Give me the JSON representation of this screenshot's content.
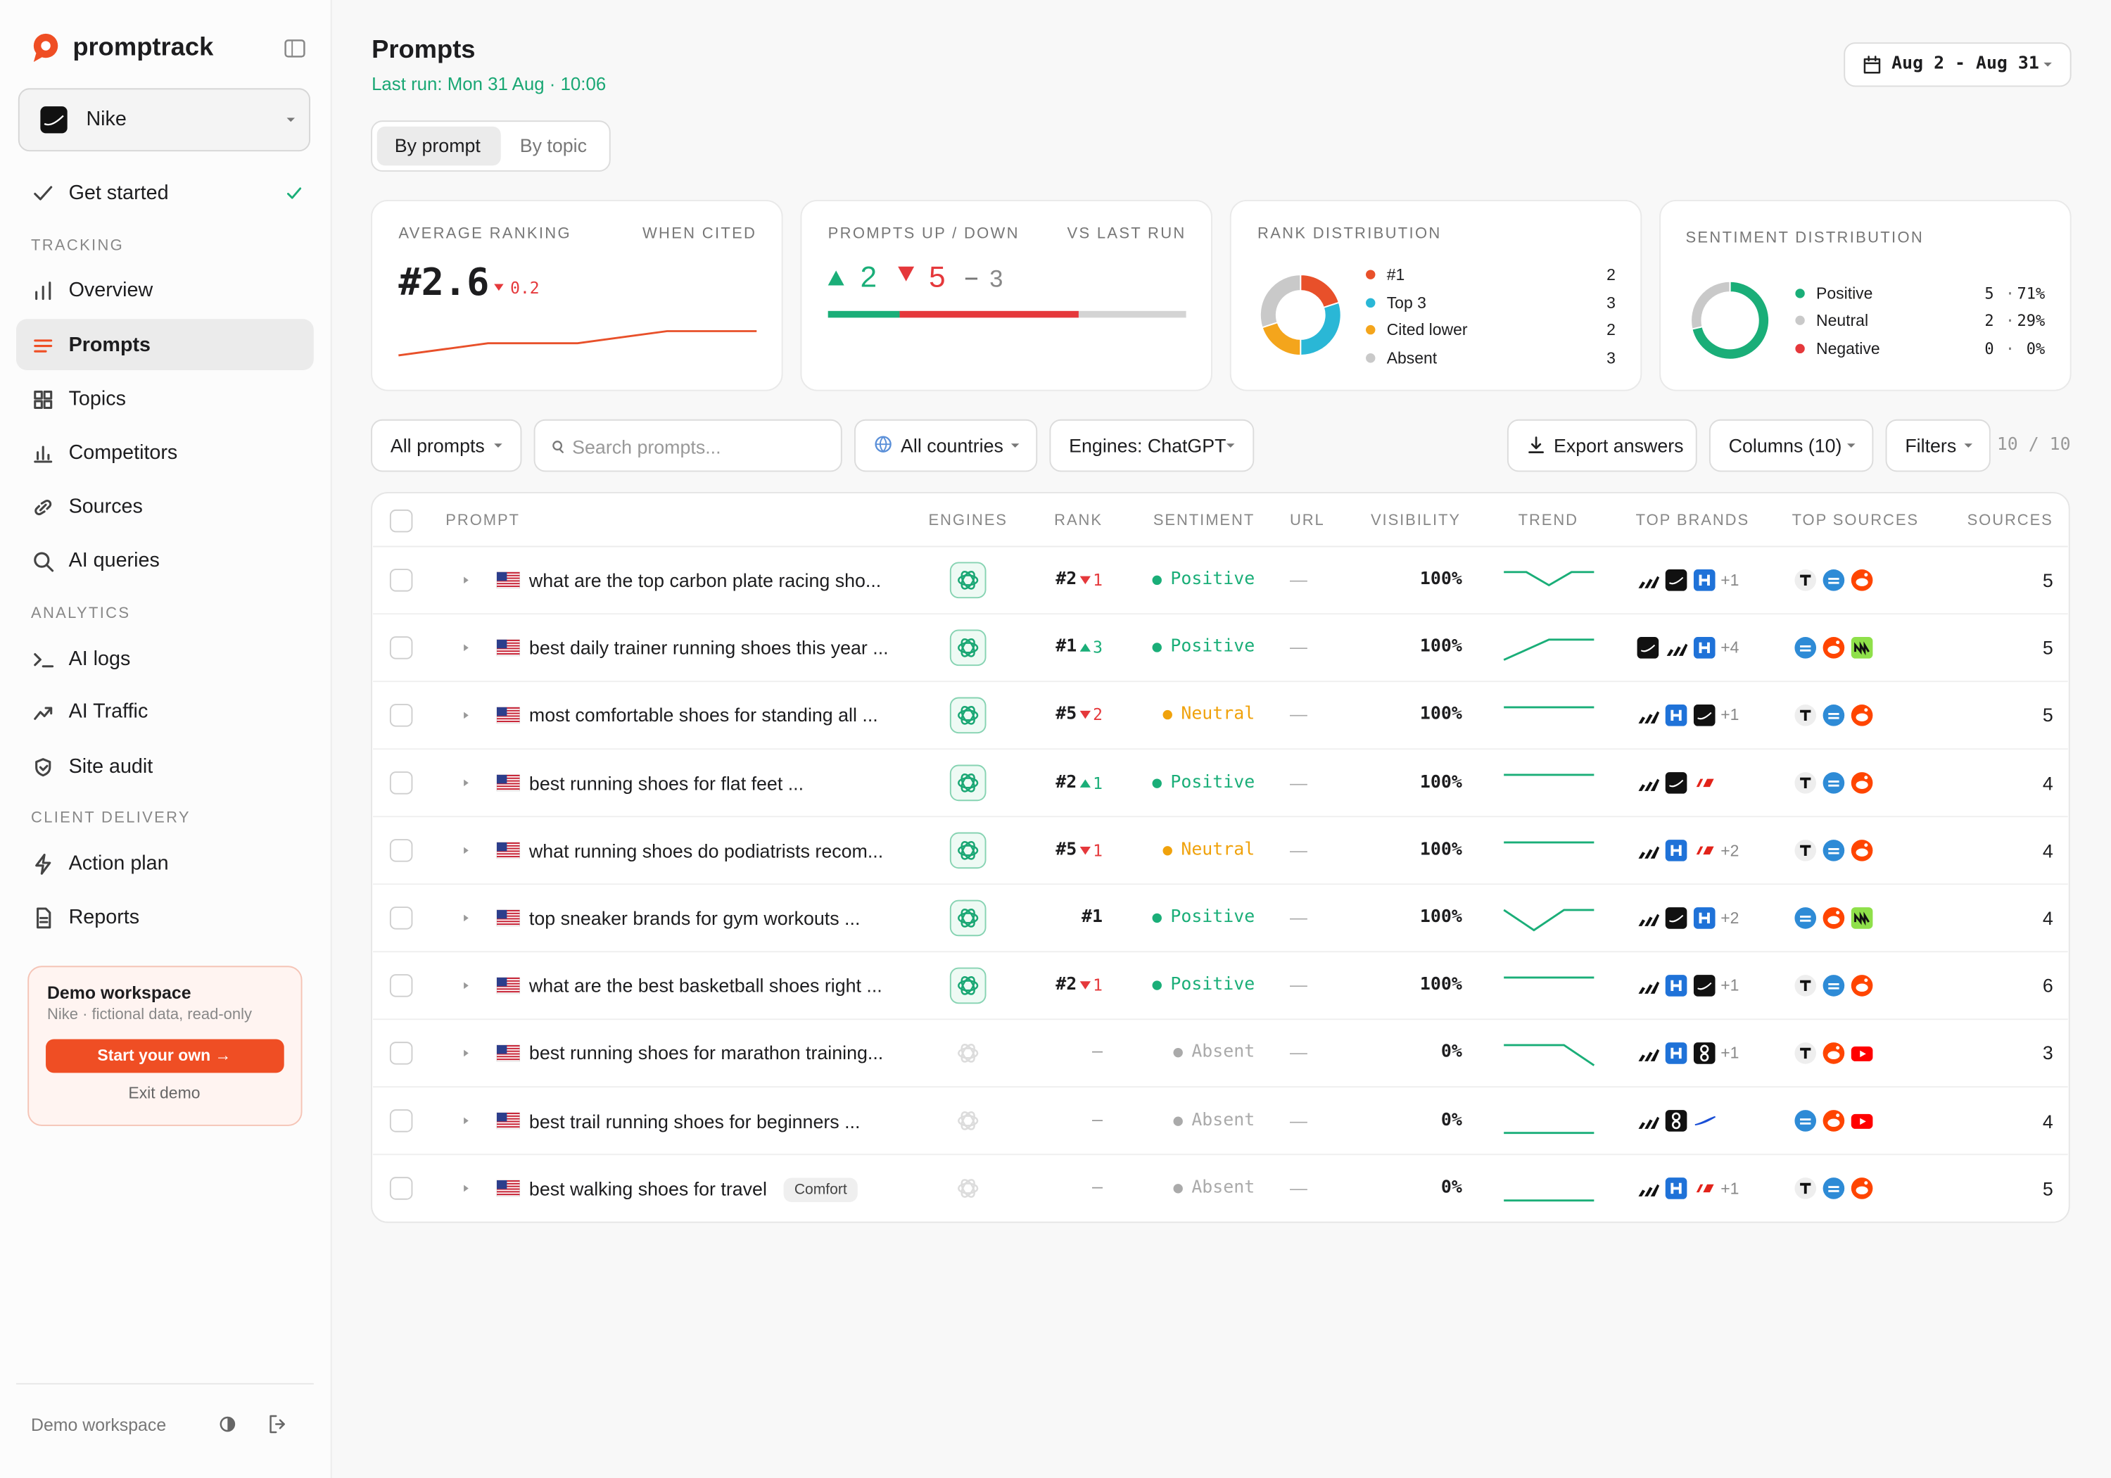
{
  "sidebar": {
    "logo": "promptrack",
    "workspace": "Nike",
    "get_started": "Get started",
    "sections": [
      {
        "title": "TRACKING",
        "items": [
          "Overview",
          "Prompts",
          "Topics",
          "Competitors",
          "Sources",
          "AI queries"
        ]
      },
      {
        "title": "ANALYTICS",
        "items": [
          "AI logs",
          "AI Traffic",
          "Site audit"
        ]
      },
      {
        "title": "CLIENT DELIVERY",
        "items": [
          "Action plan",
          "Reports"
        ]
      }
    ],
    "demo": {
      "title": "Demo workspace",
      "subtitle": "Nike · fictional data, read-only",
      "button": "Start your own →",
      "exit": "Exit demo"
    },
    "footer": "Demo workspace"
  },
  "header": {
    "title": "Prompts",
    "last_run": "Last run: Mon 31 Aug · 10:06",
    "date_range": "Aug 2 - Aug 31",
    "tabs": [
      "By prompt",
      "By topic"
    ]
  },
  "cards": {
    "avg_ranking": {
      "label": "AVERAGE RANKING",
      "note": "WHEN CITED",
      "value": "#2.6",
      "change": "0.2",
      "change_trend": "down",
      "history": [
        3.2,
        2.9,
        2.9,
        2.6,
        2.6
      ],
      "history_ylim": [
        3.4,
        2.4
      ],
      "color": "#e8502a"
    },
    "prompts_updown": {
      "label": "PROMPTS UP / DOWN",
      "note": "VS LAST RUN",
      "up": 2,
      "down": 5,
      "same": 3,
      "colors": [
        "#1aae78",
        "#e5383b",
        "#d4d4d4"
      ]
    },
    "rank_distribution": {
      "label": "RANK DISTRIBUTION",
      "items": [
        {
          "name": "#1",
          "value": 2,
          "color": "#e8502a"
        },
        {
          "name": "Top 3",
          "value": 3,
          "color": "#2ab7d6"
        },
        {
          "name": "Cited lower",
          "value": 2,
          "color": "#f4a51c"
        },
        {
          "name": "Absent",
          "value": 3,
          "color": "#c9c9c9"
        }
      ]
    },
    "sentiment": {
      "label": "SENTIMENT DISTRIBUTION",
      "separator": "·",
      "items": [
        {
          "name": "Positive",
          "count": 5,
          "share": "71%",
          "color": "#1aae78"
        },
        {
          "name": "Neutral",
          "count": 2,
          "share": "29%",
          "color": "#c9c9c9"
        },
        {
          "name": "Negative",
          "count": 0,
          "share": "0%",
          "color": "#e5383b"
        }
      ]
    }
  },
  "toolbar": {
    "filter": "All prompts",
    "search_placeholder": "Search prompts...",
    "countries": "All countries",
    "engines": "Engines: ChatGPT",
    "export": "Export answers",
    "columns": "Columns (10)",
    "filters": "Filters",
    "count": "10 / 10"
  },
  "table": {
    "columns": [
      "PROMPT",
      "ENGINES",
      "RANK",
      "SENTIMENT",
      "URL",
      "VISIBILITY",
      "TREND",
      "TOP BRANDS",
      "TOP SOURCES",
      "SOURCES"
    ],
    "rank_colors": {
      "up": "#1aae78",
      "down": "#e5383b"
    },
    "trend_color": "#1aae78",
    "trend_ylim": [
      0,
      100
    ],
    "rows": [
      {
        "prompt": "what are the top carbon plate racing sho...",
        "engine_cited": true,
        "rank": "#2",
        "rank_change": "1",
        "rank_trend": "down",
        "sentiment": "Positive",
        "sentiment_color": "#1aae78",
        "url": "—",
        "visibility": "100%",
        "trend": [
          100,
          100,
          35,
          100,
          100
        ],
        "brands_more": "+1",
        "sources": 5
      },
      {
        "prompt": "best daily trainer running shoes this year ...",
        "engine_cited": true,
        "rank": "#1",
        "rank_change": "3",
        "rank_trend": "up",
        "sentiment": "Positive",
        "sentiment_color": "#1aae78",
        "url": "—",
        "visibility": "100%",
        "trend": [
          0,
          50,
          100,
          100,
          100
        ],
        "brands_more": "+4",
        "sources": 5
      },
      {
        "prompt": "most comfortable shoes for standing all ...",
        "engine_cited": true,
        "rank": "#5",
        "rank_change": "2",
        "rank_trend": "down",
        "sentiment": "Neutral",
        "sentiment_color": "#f0a20c",
        "url": "—",
        "visibility": "100%",
        "trend": [
          100,
          100,
          100,
          100,
          100
        ],
        "brands_more": "+1",
        "sources": 5
      },
      {
        "prompt": "best running shoes for flat feet ...",
        "engine_cited": true,
        "rank": "#2",
        "rank_change": "1",
        "rank_trend": "up",
        "sentiment": "Positive",
        "sentiment_color": "#1aae78",
        "url": "—",
        "visibility": "100%",
        "trend": [
          100,
          100,
          100,
          100,
          100
        ],
        "sources": 4
      },
      {
        "prompt": "what running shoes do podiatrists recom...",
        "engine_cited": true,
        "rank": "#5",
        "rank_change": "1",
        "rank_trend": "down",
        "sentiment": "Neutral",
        "sentiment_color": "#f0a20c",
        "url": "—",
        "visibility": "100%",
        "trend": [
          100,
          100,
          100,
          100,
          100
        ],
        "brands_more": "+2",
        "sources": 4
      },
      {
        "prompt": "top sneaker brands for gym workouts ...",
        "engine_cited": true,
        "rank": "#1",
        "sentiment": "Positive",
        "sentiment_color": "#1aae78",
        "url": "—",
        "visibility": "100%",
        "trend": [
          100,
          0,
          100,
          100
        ],
        "brands_more": "+2",
        "sources": 4
      },
      {
        "prompt": "what are the best basketball shoes right ...",
        "engine_cited": true,
        "rank": "#2",
        "rank_change": "1",
        "rank_trend": "down",
        "sentiment": "Positive",
        "sentiment_color": "#1aae78",
        "url": "—",
        "visibility": "100%",
        "trend": [
          100,
          100,
          100,
          100,
          100
        ],
        "brands_more": "+1",
        "sources": 6
      },
      {
        "prompt": "best running shoes for marathon training...",
        "engine_cited": false,
        "rank": "–",
        "sentiment": "Absent",
        "sentiment_color": "#aaaaaa",
        "url": "—",
        "visibility": "0%",
        "trend": [
          100,
          100,
          100,
          0
        ],
        "brands_more": "+1",
        "sources": 3
      },
      {
        "prompt": "best trail running shoes for beginners ...",
        "engine_cited": false,
        "rank": "–",
        "sentiment": "Absent",
        "sentiment_color": "#aaaaaa",
        "url": "—",
        "visibility": "0%",
        "trend": [
          0,
          0,
          0,
          0
        ],
        "sources": 4
      },
      {
        "prompt": "best walking shoes for travel",
        "tag": "Comfort",
        "engine_cited": false,
        "rank": "–",
        "sentiment": "Absent",
        "sentiment_color": "#aaaaaa",
        "url": "—",
        "visibility": "0%",
        "trend": [
          0,
          0,
          0,
          0
        ],
        "brands_more": "+1",
        "sources": 5
      }
    ]
  }
}
